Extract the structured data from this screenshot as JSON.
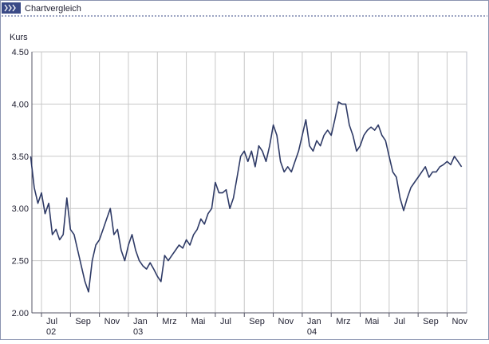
{
  "header": {
    "title": "Chartvergleich"
  },
  "chart_data": {
    "type": "line",
    "y_label": "Kurs",
    "categories": [
      null,
      null,
      null,
      "Jul\n02",
      null,
      null,
      null,
      null,
      null,
      null,
      null,
      "Sep",
      null,
      null,
      null,
      null,
      null,
      null,
      null,
      "Nov",
      null,
      null,
      null,
      null,
      null,
      null,
      null,
      "Jan\n03",
      null,
      null,
      null,
      null,
      null,
      null,
      null,
      "Mrz",
      null,
      null,
      null,
      null,
      null,
      null,
      null,
      "Mai",
      null,
      null,
      null,
      null,
      null,
      null,
      null,
      "Jul",
      null,
      null,
      null,
      null,
      null,
      null,
      null,
      "Sep",
      null,
      null,
      null,
      null,
      null,
      null,
      null,
      "Nov",
      null,
      null,
      null,
      null,
      null,
      null,
      null,
      "Jan\n04",
      null,
      null,
      null,
      null,
      null,
      null,
      null,
      "Mrz",
      null,
      null,
      null,
      null,
      null,
      null,
      null,
      "Mai",
      null,
      null,
      null,
      null,
      null,
      null,
      null,
      "Jul",
      null,
      null,
      null,
      null,
      null,
      null,
      null,
      "Sep",
      null,
      null,
      null,
      null,
      null,
      null,
      null,
      "Nov",
      null,
      null,
      null,
      null
    ],
    "series": [
      {
        "color": "#2e3a66",
        "values": [
          3.5,
          3.2,
          3.05,
          3.15,
          2.95,
          3.05,
          2.75,
          2.8,
          2.7,
          2.75,
          3.1,
          2.8,
          2.75,
          2.6,
          2.45,
          2.3,
          2.2,
          2.5,
          2.65,
          2.7,
          2.8,
          2.9,
          3.0,
          2.75,
          2.8,
          2.6,
          2.5,
          2.65,
          2.75,
          2.6,
          2.5,
          2.45,
          2.42,
          2.48,
          2.42,
          2.35,
          2.3,
          2.55,
          2.5,
          2.55,
          2.6,
          2.65,
          2.62,
          2.7,
          2.65,
          2.75,
          2.8,
          2.9,
          2.85,
          2.95,
          3.0,
          3.25,
          3.15,
          3.15,
          3.18,
          3.0,
          3.1,
          3.3,
          3.5,
          3.55,
          3.45,
          3.55,
          3.4,
          3.6,
          3.55,
          3.45,
          3.6,
          3.8,
          3.7,
          3.45,
          3.35,
          3.4,
          3.35,
          3.45,
          3.55,
          3.7,
          3.85,
          3.6,
          3.55,
          3.65,
          3.6,
          3.7,
          3.75,
          3.7,
          3.85,
          4.02,
          4.0,
          4.0,
          3.8,
          3.7,
          3.55,
          3.6,
          3.7,
          3.75,
          3.78,
          3.75,
          3.8,
          3.7,
          3.65,
          3.5,
          3.35,
          3.3,
          3.1,
          2.98,
          3.1,
          3.2,
          3.25,
          3.3,
          3.35,
          3.4,
          3.3,
          3.35,
          3.35,
          3.4,
          3.42,
          3.45,
          3.42,
          3.5,
          3.45,
          3.4
        ]
      }
    ],
    "ylim": [
      2.0,
      4.5
    ],
    "yticks": [
      {
        "value": 2.0,
        "label": "2.00"
      },
      {
        "value": 2.5,
        "label": "2.50"
      },
      {
        "value": 3.0,
        "label": "3.00"
      },
      {
        "value": 3.5,
        "label": "3.50"
      },
      {
        "value": 4.0,
        "label": "4.00"
      },
      {
        "value": 4.5,
        "label": "4.50"
      }
    ],
    "grid": true
  }
}
